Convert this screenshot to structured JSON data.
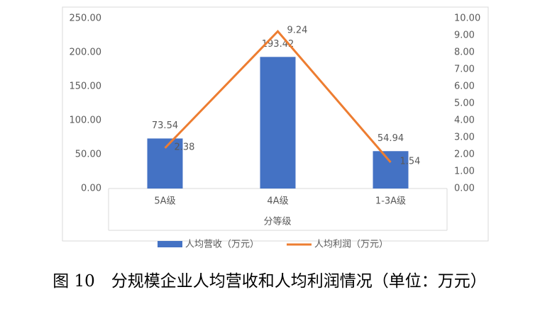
{
  "chart_data": {
    "type": "bar",
    "categories": [
      "5A级",
      "4A级",
      "1-3A级"
    ],
    "x_label": "分等级",
    "series": [
      {
        "name": "人均营收（万元）",
        "type": "bar",
        "color": "#4472c4",
        "axis": "y",
        "values": [
          73.54,
          193.42,
          54.94
        ]
      },
      {
        "name": "人均利润（万元）",
        "type": "line",
        "color": "#ed7d31",
        "axis": "y2",
        "values": [
          2.38,
          9.24,
          1.54
        ]
      }
    ],
    "ylim": [
      0,
      250
    ],
    "yticks": [
      {
        "value": 0,
        "label": "0.00"
      },
      {
        "value": 50,
        "label": "50.00"
      },
      {
        "value": 100,
        "label": "100.00"
      },
      {
        "value": 150,
        "label": "150.00"
      },
      {
        "value": 200,
        "label": "200.00"
      },
      {
        "value": 250,
        "label": "250.00"
      }
    ],
    "y2lim": [
      0,
      10
    ],
    "y2ticks": [
      {
        "value": 0,
        "label": "0.00"
      },
      {
        "value": 1,
        "label": "1.00"
      },
      {
        "value": 2,
        "label": "2.00"
      },
      {
        "value": 3,
        "label": "3.00"
      },
      {
        "value": 4,
        "label": "4.00"
      },
      {
        "value": 5,
        "label": "5.00"
      },
      {
        "value": 6,
        "label": "6.00"
      },
      {
        "value": 7,
        "label": "7.00"
      },
      {
        "value": 8,
        "label": "8.00"
      },
      {
        "value": 9,
        "label": "9.00"
      },
      {
        "value": 10,
        "label": "10.00"
      }
    ],
    "grid": false,
    "legend": "bottom"
  },
  "caption": "图 10　分规模企业人均营收和人均利润情况（单位：万元）"
}
